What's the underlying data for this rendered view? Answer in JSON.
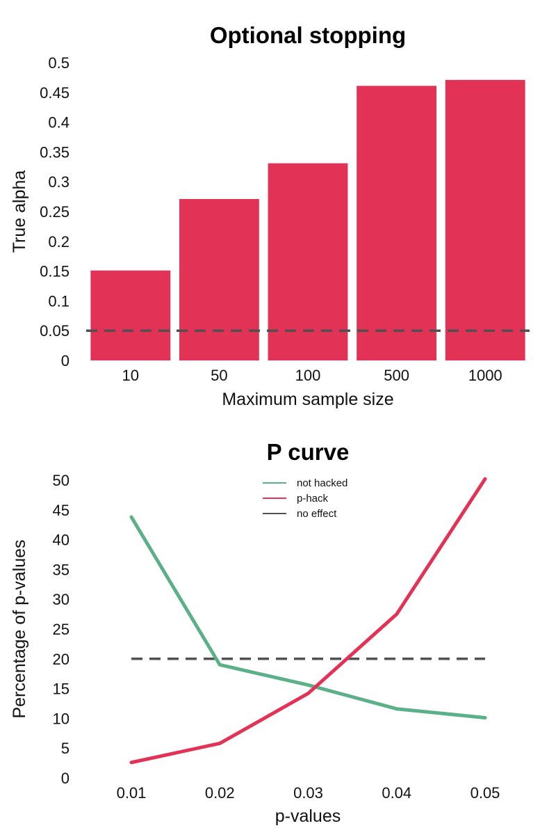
{
  "chart_data": [
    {
      "type": "bar",
      "title": "Optional stopping",
      "xlabel": "Maximum sample size",
      "ylabel": "True alpha",
      "categories": [
        "10",
        "50",
        "100",
        "500",
        "1000"
      ],
      "values": [
        0.151,
        0.271,
        0.331,
        0.461,
        0.471
      ],
      "ylim": [
        0,
        0.5
      ],
      "yticks": [
        "0",
        "0.05",
        "0.1",
        "0.15",
        "0.2",
        "0.25",
        "0.3",
        "0.35",
        "0.4",
        "0.45",
        "0.5"
      ],
      "reference_line": {
        "y": 0.05,
        "style": "dashed"
      },
      "grid": false,
      "colors": {
        "bar": "#E23357",
        "reference": "#505050"
      }
    },
    {
      "type": "line",
      "title": "P curve",
      "xlabel": "p-values",
      "ylabel": "Percentage of p-values",
      "x": [
        "0.01",
        "0.02",
        "0.03",
        "0.04",
        "0.05"
      ],
      "ylim": [
        0,
        50
      ],
      "yticks": [
        "0",
        "5",
        "10",
        "15",
        "20",
        "25",
        "30",
        "35",
        "40",
        "45",
        "50"
      ],
      "legend_position": "top-center",
      "grid": false,
      "series": [
        {
          "name": "not hacked",
          "values": [
            43.8,
            19.0,
            15.6,
            11.6,
            10.1
          ],
          "color": "#5BB08A",
          "style": "solid"
        },
        {
          "name": "p-hack",
          "values": [
            2.6,
            5.8,
            14.2,
            27.5,
            50.2
          ],
          "color": "#E23357",
          "style": "solid"
        },
        {
          "name": "no effect",
          "values": [
            20,
            20,
            20,
            20,
            20
          ],
          "color": "#505050",
          "style": "dashed"
        }
      ]
    }
  ]
}
